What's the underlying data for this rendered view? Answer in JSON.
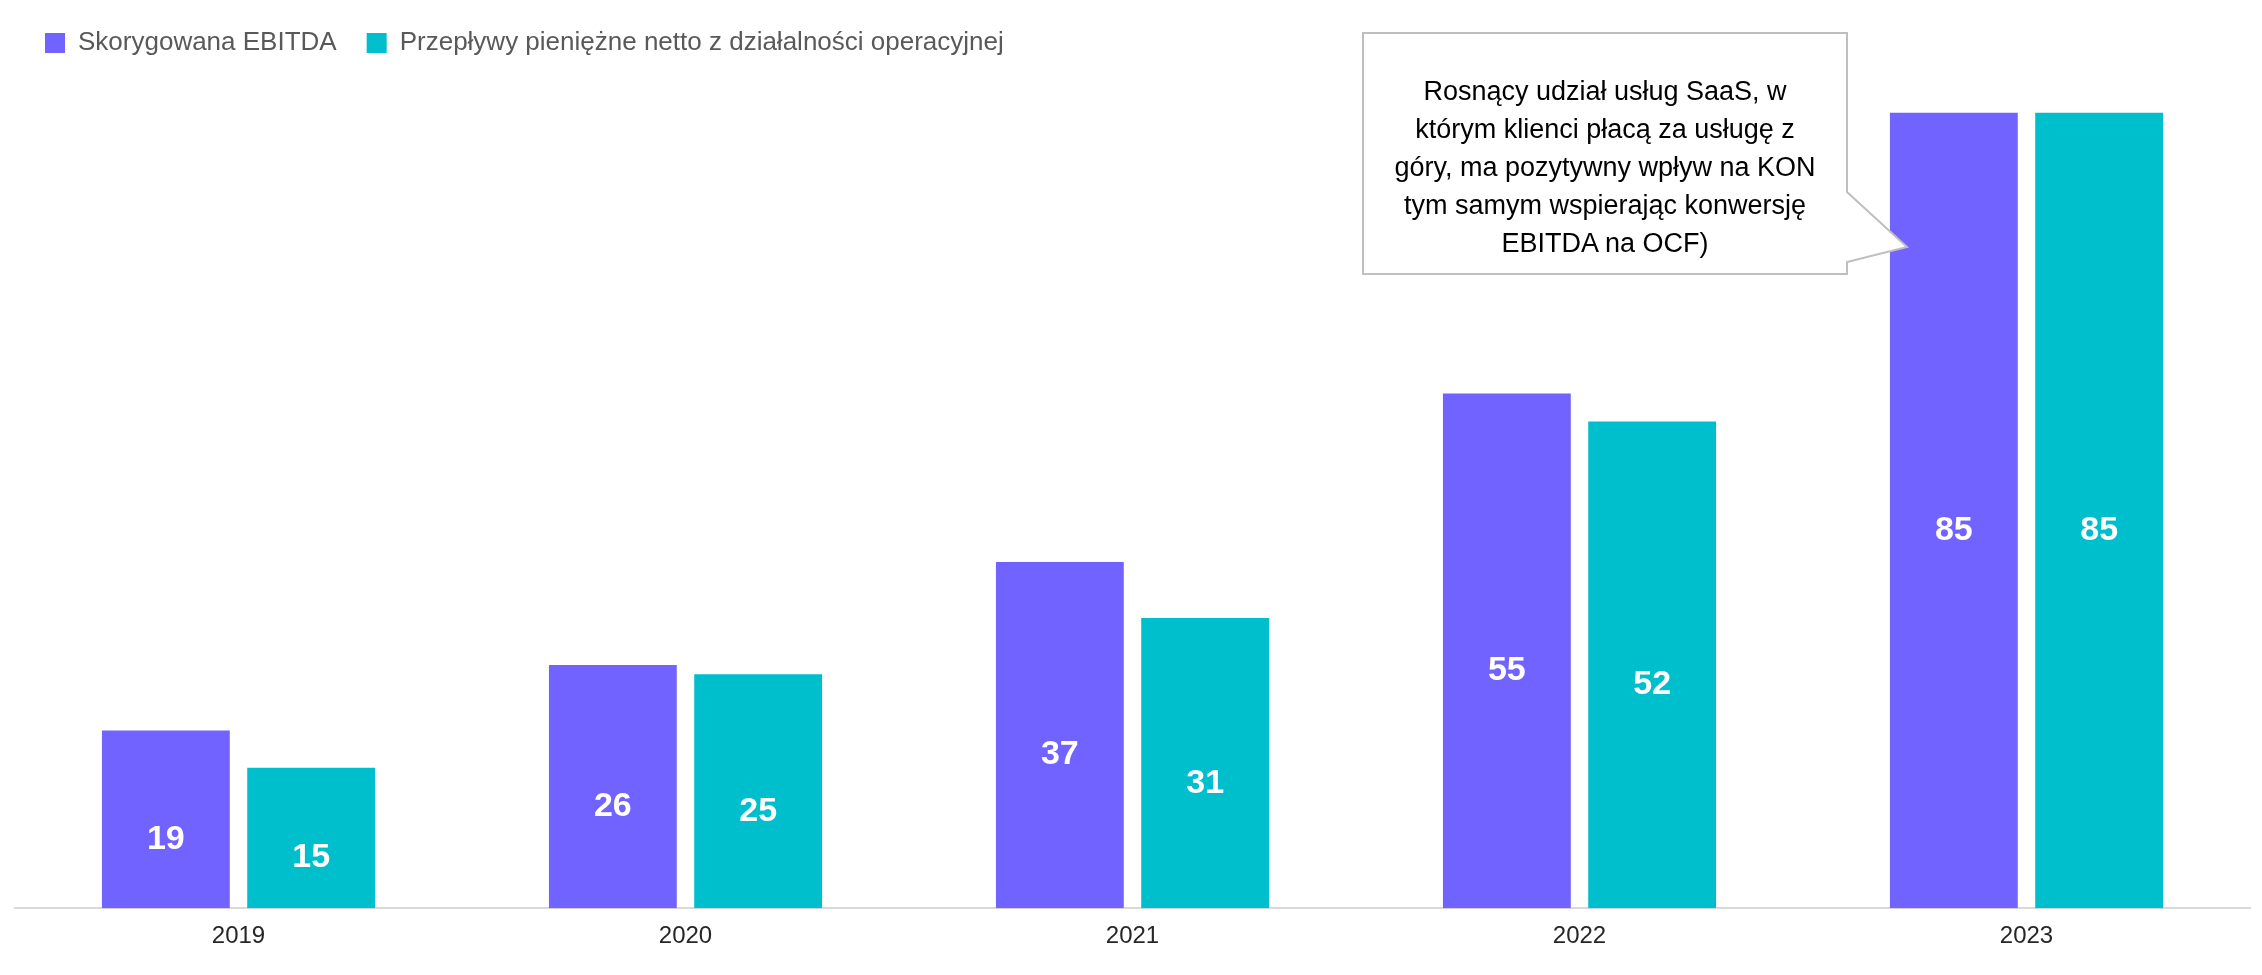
{
  "chart_data": {
    "type": "bar",
    "categories": [
      "2019",
      "2020",
      "2021",
      "2022",
      "2023"
    ],
    "series": [
      {
        "name": "Skorygowana EBITDA",
        "color": "#7163ff",
        "values": [
          19,
          26,
          37,
          55,
          85
        ]
      },
      {
        "name": "Przepływy pieniężne netto z działalności operacyjnej",
        "color": "#00bfcc",
        "values": [
          15,
          25,
          31,
          52,
          85
        ]
      }
    ],
    "data_labels": true,
    "legend": "top left",
    "grid": false,
    "tick_labels": "x",
    "annotations": [
      "Rosnący udział usług SaaS, w którym klienci płacą za usługę z góry, ma pozytywny wpływ na KON tym samym wspierając konwersję EBITDA na OCF)"
    ]
  }
}
